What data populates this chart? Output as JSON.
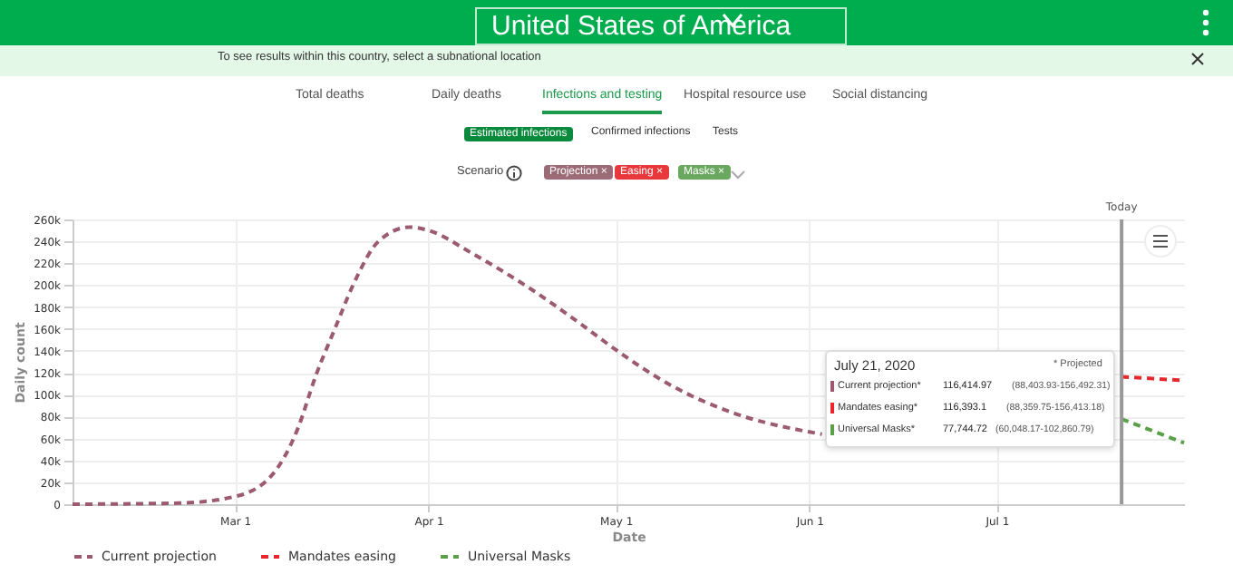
{
  "chart_data": {
    "type": "line",
    "xlabel": "Date",
    "ylabel": "Daily count",
    "series": [
      {
        "name": "Current projection",
        "color": "#9b5a6f",
        "x": [
          "2020-02-04",
          "2020-02-21",
          "2020-03-01",
          "2020-03-07",
          "2020-03-11",
          "2020-03-14",
          "2020-03-17",
          "2020-03-20",
          "2020-03-24",
          "2020-03-29",
          "2020-04-01",
          "2020-04-08",
          "2020-04-17",
          "2020-04-26",
          "2020-05-01",
          "2020-05-10",
          "2020-05-20",
          "2020-06-01",
          "2020-06-03"
        ],
        "values": [
          0,
          1000,
          7000,
          27000,
          68000,
          118000,
          160000,
          201000,
          240000,
          253000,
          250000,
          229000,
          198000,
          162000,
          141000,
          108000,
          83000,
          66000,
          64000
        ]
      },
      {
        "name": "Mandates easing",
        "color": "#e8262b",
        "x": [
          "2020-07-21",
          "2020-07-31"
        ],
        "values": [
          116393.1,
          113000
        ]
      },
      {
        "name": "Universal Masks",
        "color": "#5aa048",
        "x": [
          "2020-07-21",
          "2020-07-31"
        ],
        "values": [
          77744.72,
          56000
        ]
      }
    ],
    "xlim": [
      "2020-02-04",
      "2020-07-31"
    ],
    "xticks": [
      {
        "value": "2020-03-01",
        "label": "Mar 1"
      },
      {
        "value": "2020-04-01",
        "label": "Apr 1"
      },
      {
        "value": "2020-05-01",
        "label": "May 1"
      },
      {
        "value": "2020-06-01",
        "label": "Jun 1"
      },
      {
        "value": "2020-07-01",
        "label": "Jul 1"
      }
    ],
    "ylim": [
      0,
      260000
    ],
    "yticks": [
      {
        "value": 0,
        "label": "0"
      },
      {
        "value": 20000,
        "label": "20k"
      },
      {
        "value": 40000,
        "label": "40k"
      },
      {
        "value": 60000,
        "label": "60k"
      },
      {
        "value": 80000,
        "label": "80k"
      },
      {
        "value": 100000,
        "label": "100k"
      },
      {
        "value": 120000,
        "label": "120k"
      },
      {
        "value": 140000,
        "label": "140k"
      },
      {
        "value": 160000,
        "label": "160k"
      },
      {
        "value": 180000,
        "label": "180k"
      },
      {
        "value": 200000,
        "label": "200k"
      },
      {
        "value": 220000,
        "label": "220k"
      },
      {
        "value": 240000,
        "label": "240k"
      },
      {
        "value": 260000,
        "label": "260k"
      }
    ],
    "ref_lines": [
      {
        "axis": "x",
        "value": "2020-07-21",
        "label": "Today",
        "color": "#999999"
      }
    ],
    "grid": true,
    "legend": "bottom",
    "line_style": "dashed",
    "annotations": [
      "United States of America",
      "To see results within this country, select a subnational location",
      "Total deaths",
      "Daily deaths",
      "Infections and testing",
      "Hospital resource use",
      "Social distancing",
      "Estimated infections",
      "Confirmed infections",
      "Tests",
      "Scenario",
      "Projection ×",
      "Easing ×",
      "Masks ×",
      "July 21, 2020",
      "* Projected",
      "Current projection*",
      "116,414.97",
      "(88,403.93-156,492.31)",
      "Mandates easing*",
      "116,393.1",
      "(88,359.75-156,413.18)",
      "Universal Masks*",
      "77,744.72",
      "(60,048.17-102,860.79)"
    ]
  }
}
